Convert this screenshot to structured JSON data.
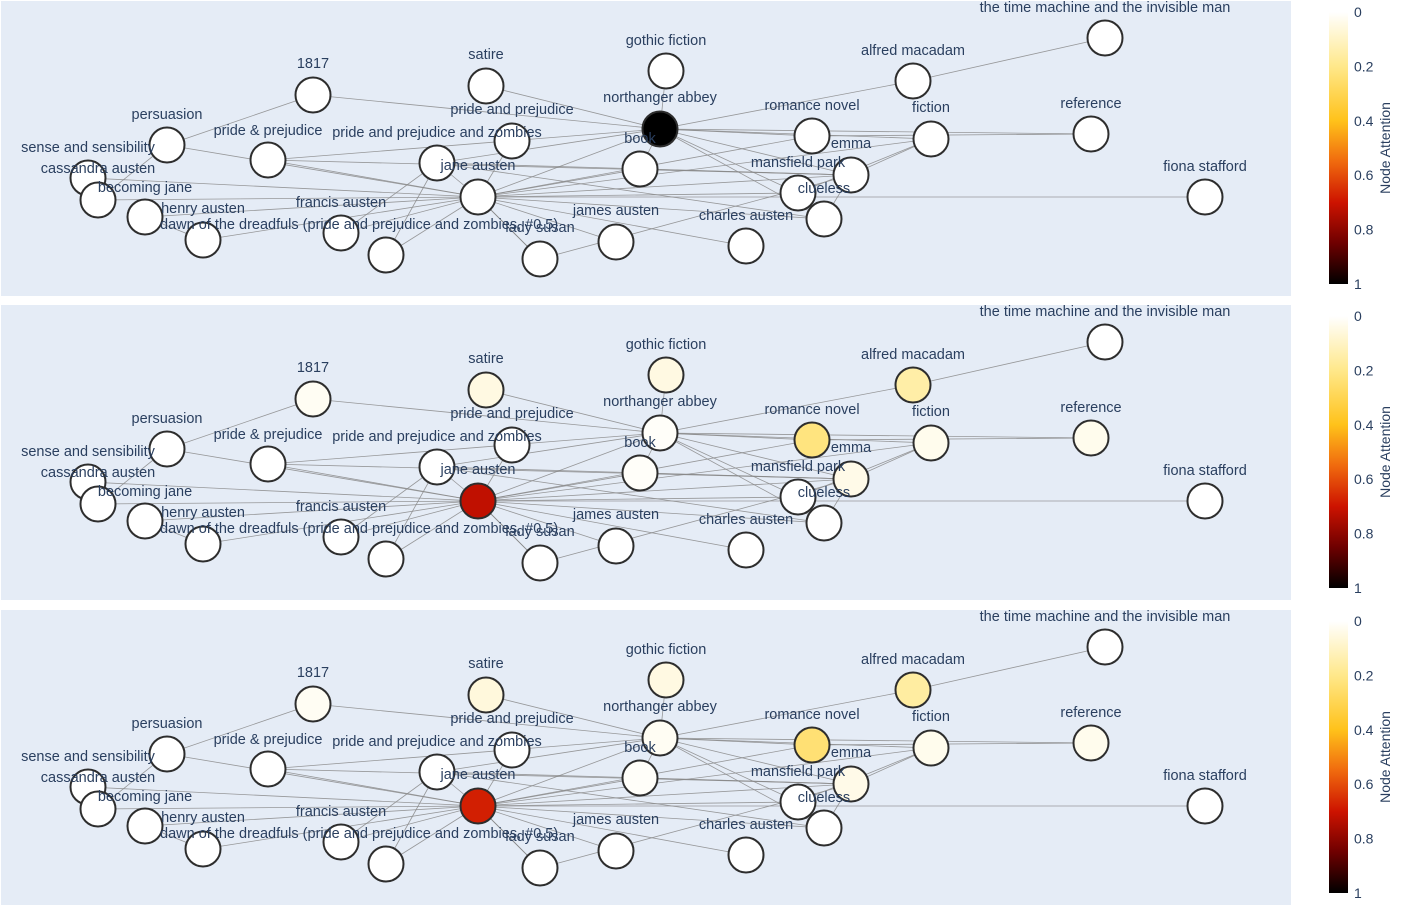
{
  "colorbar": {
    "title": "Node Attention",
    "ticks": [
      {
        "value": 0,
        "label": "0"
      },
      {
        "value": 0.2,
        "label": "0.2"
      },
      {
        "value": 0.4,
        "label": "0.4"
      },
      {
        "value": 0.6,
        "label": "0.6"
      },
      {
        "value": 0.8,
        "label": "0.8"
      },
      {
        "value": 1,
        "label": "1"
      }
    ],
    "stops": [
      {
        "value": 0,
        "color": "#ffffff"
      },
      {
        "value": 0.2,
        "color": "#ffe88a"
      },
      {
        "value": 0.4,
        "color": "#ffc21a"
      },
      {
        "value": 0.55,
        "color": "#f06a0e"
      },
      {
        "value": 0.7,
        "color": "#cd1300"
      },
      {
        "value": 0.85,
        "color": "#6e0000"
      },
      {
        "value": 1,
        "color": "#000000"
      }
    ]
  },
  "nodes": [
    {
      "id": "n_time",
      "label": "the time machine and the invisible man"
    },
    {
      "id": "n_alfred",
      "label": "alfred macadam"
    },
    {
      "id": "n_gothic",
      "label": "gothic fiction"
    },
    {
      "id": "n_1817",
      "label": "1817"
    },
    {
      "id": "n_satire",
      "label": "satire"
    },
    {
      "id": "n_northanger",
      "label": "northanger abbey"
    },
    {
      "id": "n_ppunder",
      "label": "pride and prejudice"
    },
    {
      "id": "n_romance",
      "label": "romance novel"
    },
    {
      "id": "n_fiction",
      "label": "fiction"
    },
    {
      "id": "n_reference",
      "label": "reference"
    },
    {
      "id": "n_persuasion",
      "label": "persuasion"
    },
    {
      "id": "n_ppamp",
      "label": "pride & prejudice"
    },
    {
      "id": "n_ppz",
      "label": "pride and prejudice and zombies"
    },
    {
      "id": "n_book",
      "label": "book"
    },
    {
      "id": "n_emma",
      "label": "emma"
    },
    {
      "id": "n_sense",
      "label": "sense and sensibility"
    },
    {
      "id": "n_cassandra",
      "label": "cassandra austen"
    },
    {
      "id": "n_jane",
      "label": "jane austen"
    },
    {
      "id": "n_mansfield",
      "label": "mansfield park"
    },
    {
      "id": "n_fiona",
      "label": "fiona stafford"
    },
    {
      "id": "n_becoming",
      "label": "becoming jane"
    },
    {
      "id": "n_clueless",
      "label": "clueless"
    },
    {
      "id": "n_francis",
      "label": "francis austen"
    },
    {
      "id": "n_henry",
      "label": "henry austen"
    },
    {
      "id": "n_james",
      "label": "james austen"
    },
    {
      "id": "n_charles",
      "label": "charles austen"
    },
    {
      "id": "n_dawn",
      "label": "dawn of the dreadfuls (pride and prejudice and zombies, #0.5)"
    },
    {
      "id": "n_lady",
      "label": "lady susan"
    },
    {
      "id": "n_cbottom",
      "label": ""
    }
  ],
  "edges": [
    [
      "n_jane",
      "n_persuasion"
    ],
    [
      "n_jane",
      "n_sense"
    ],
    [
      "n_jane",
      "n_cassandra"
    ],
    [
      "n_jane",
      "n_becoming"
    ],
    [
      "n_jane",
      "n_henry"
    ],
    [
      "n_jane",
      "n_dawn"
    ],
    [
      "n_jane",
      "n_francis"
    ],
    [
      "n_jane",
      "n_ppz"
    ],
    [
      "n_jane",
      "n_lady"
    ],
    [
      "n_jane",
      "n_james"
    ],
    [
      "n_jane",
      "n_charles"
    ],
    [
      "n_jane",
      "n_book"
    ],
    [
      "n_jane",
      "n_northanger"
    ],
    [
      "n_jane",
      "n_ppamp"
    ],
    [
      "n_jane",
      "n_mansfield"
    ],
    [
      "n_jane",
      "n_emma"
    ],
    [
      "n_jane",
      "n_romance"
    ],
    [
      "n_jane",
      "n_cbottom"
    ],
    [
      "n_jane",
      "n_clueless"
    ],
    [
      "n_jane",
      "n_fiona"
    ],
    [
      "n_jane",
      "n_fiction"
    ],
    [
      "n_jane",
      "n_ppunder"
    ],
    [
      "n_northanger",
      "n_1817"
    ],
    [
      "n_northanger",
      "n_satire"
    ],
    [
      "n_northanger",
      "n_gothic"
    ],
    [
      "n_northanger",
      "n_romance"
    ],
    [
      "n_northanger",
      "n_fiction"
    ],
    [
      "n_northanger",
      "n_alfred"
    ],
    [
      "n_northanger",
      "n_reference"
    ],
    [
      "n_northanger",
      "n_emma"
    ],
    [
      "n_northanger",
      "n_mansfield"
    ],
    [
      "n_northanger",
      "n_ppz"
    ],
    [
      "n_northanger",
      "n_book"
    ],
    [
      "n_northanger",
      "n_ppamp"
    ],
    [
      "n_northanger",
      "n_clueless"
    ],
    [
      "n_persuasion",
      "n_1817"
    ],
    [
      "n_persuasion",
      "n_cassandra"
    ],
    [
      "n_ppamp",
      "n_emma"
    ],
    [
      "n_ppz",
      "n_clueless"
    ],
    [
      "n_ppz",
      "n_emma"
    ],
    [
      "n_book",
      "n_emma"
    ],
    [
      "n_emma",
      "n_fiction"
    ],
    [
      "n_emma",
      "n_cbottom"
    ],
    [
      "n_mansfield",
      "n_fiction"
    ],
    [
      "n_clueless",
      "n_emma"
    ],
    [
      "n_romance",
      "n_reference"
    ],
    [
      "n_alfred",
      "n_time"
    ],
    [
      "n_henry",
      "n_becoming"
    ],
    [
      "n_dawn",
      "n_ppz"
    ],
    [
      "n_francis",
      "n_ppz"
    ],
    [
      "n_sense",
      "n_cassandra"
    ]
  ],
  "panels": [
    {
      "name": "top",
      "attention": {
        "n_northanger": 1.0
      }
    },
    {
      "name": "middle",
      "attention": {
        "n_jane": 0.72,
        "n_romance": 0.22,
        "n_alfred": 0.15,
        "n_satire": 0.05,
        "n_gothic": 0.05,
        "n_emma": 0.04,
        "n_fiction": 0.03,
        "n_reference": 0.03,
        "n_1817": 0.02,
        "n_northanger": 0.01,
        "n_book": 0.01
      }
    },
    {
      "name": "bottom",
      "attention": {
        "n_jane": 0.68,
        "n_romance": 0.24,
        "n_alfred": 0.16,
        "n_satire": 0.06,
        "n_gothic": 0.05,
        "n_emma": 0.04,
        "n_fiction": 0.03,
        "n_reference": 0.03,
        "n_1817": 0.02,
        "n_northanger": 0.02,
        "n_book": 0.01
      }
    }
  ]
}
